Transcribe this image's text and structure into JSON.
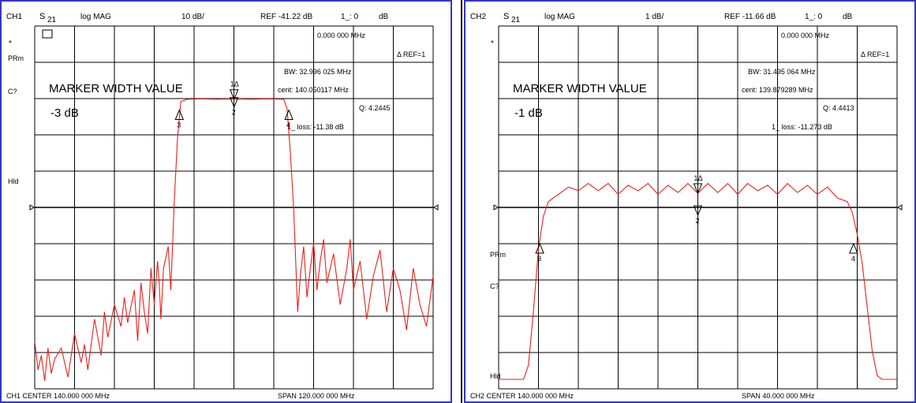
{
  "colors": {
    "trace": "#e8201c",
    "frame": "#3434c8",
    "grid": "#000000",
    "text": "#000000"
  },
  "channels": [
    {
      "header": {
        "channel": "CH1",
        "param": "S",
        "param_sub": "21",
        "format": "log MAG",
        "scale": "10 dB/",
        "ref": "REF -41.22 dB",
        "marker_id": "1_: 0",
        "marker_unit": "dB"
      },
      "side_labels": [
        "*",
        "PRm",
        "C?",
        "Hld"
      ],
      "box_icon": "[ʰ͞ᴢ]",
      "marker_readout": {
        "freq": "0.000 000 MHz",
        "ref": "Δ REF=1",
        "bw": "BW:  32.996 025 MHz",
        "cent": "cent:  140.050117 MHz",
        "q": "Q: 4.2445",
        "loss": "1_ loss: -11.38  dB"
      },
      "overlay": {
        "title": "MARKER WIDTH VALUE",
        "value": "-3 dB"
      },
      "footer": {
        "center": "CH1 CENTER  140.000 000 MHz",
        "span": "SPAN  120.000 000 MHz"
      },
      "markers": [
        {
          "label": "1Δ",
          "x": 140.05,
          "y": -11.38
        },
        {
          "label": "2",
          "x": 140.05,
          "y": -11.38
        },
        {
          "label": "3",
          "x": 123.55,
          "y": -14.38
        },
        {
          "label": "4",
          "x": 156.55,
          "y": -14.38
        }
      ]
    },
    {
      "header": {
        "channel": "CH2",
        "param": "S",
        "param_sub": "21",
        "format": "log MAG",
        "scale": "1 dB/",
        "ref": "REF -11.66 dB",
        "marker_id": "1_: 0",
        "marker_unit": "dB"
      },
      "side_labels": [
        "*",
        "PRm",
        "C?",
        "Hld"
      ],
      "box_icon": "",
      "marker_readout": {
        "freq": "0.000 000 MHz",
        "ref": "Δ REF=1",
        "bw": "BW:  31.495 064 MHz",
        "cent": "cent:  139.879289 MHz",
        "q": "Q: 4.4413",
        "loss": "1_ loss: -11.273 dB"
      },
      "overlay": {
        "title": "MARKER WIDTH VALUE",
        "value": "-1 dB"
      },
      "footer": {
        "center": "CH2 CENTER  140.000 000 MHz",
        "span": "SPAN  40.000 000 MHz"
      },
      "markers": [
        {
          "label": "1Δ",
          "x": 140.0,
          "y": -11.27
        },
        {
          "label": "2",
          "x": 140.0,
          "y": -11.66
        },
        {
          "label": "3",
          "x": 124.13,
          "y": -12.66
        },
        {
          "label": "4",
          "x": 155.63,
          "y": -12.66
        }
      ]
    }
  ],
  "chart_data": [
    {
      "type": "line",
      "title": "",
      "xlabel": "",
      "ylabel": "",
      "xlim": [
        80,
        200
      ],
      "ylim": [
        -91.22,
        8.78
      ],
      "x_unit": "MHz",
      "y_unit": "dB",
      "ref_level": -41.22,
      "grid": true,
      "series": [
        {
          "x": [
            80,
            81,
            82,
            83,
            84,
            85,
            86,
            88,
            90,
            92,
            94,
            95,
            96,
            98,
            100,
            101,
            102,
            104,
            106,
            107,
            108,
            110,
            111,
            112,
            113,
            114,
            115,
            116,
            117,
            117.5,
            118,
            118.8,
            119.5,
            120.2,
            121,
            122,
            123,
            124,
            126,
            130,
            135,
            140,
            145,
            150,
            155,
            156,
            157,
            158,
            158.6,
            159.2,
            160,
            161,
            162,
            163,
            164,
            165,
            166,
            167,
            168,
            170,
            172,
            174,
            175,
            176,
            178,
            180,
            182,
            184,
            186,
            188,
            190,
            192,
            194,
            196,
            198,
            200
          ],
          "y": [
            -78,
            -86,
            -82,
            -89,
            -80,
            -87,
            -83,
            -80,
            -88,
            -76,
            -84,
            -79,
            -86,
            -72,
            -82,
            -70,
            -77,
            -68,
            -74,
            -66,
            -73,
            -64,
            -78,
            -62,
            -70,
            -76,
            -58,
            -68,
            -56,
            -62,
            -72,
            -58,
            -55,
            -52,
            -64,
            -40,
            -22,
            -12,
            -11.4,
            -11.3,
            -11.4,
            -11.3,
            -11.4,
            -11.3,
            -11.4,
            -14,
            -26,
            -42,
            -56,
            -70,
            -60,
            -52,
            -66,
            -58,
            -51,
            -64,
            -56,
            -50,
            -62,
            -54,
            -68,
            -58,
            -50,
            -64,
            -56,
            -72,
            -60,
            -53,
            -70,
            -58,
            -64,
            -75,
            -58,
            -68,
            -74,
            -60
          ]
        }
      ]
    },
    {
      "type": "line",
      "title": "",
      "xlabel": "",
      "ylabel": "",
      "xlim": [
        120,
        160
      ],
      "ylim": [
        -16.66,
        -6.66
      ],
      "x_unit": "MHz",
      "y_unit": "dB",
      "ref_level": -11.66,
      "grid": true,
      "series": [
        {
          "x": [
            120,
            120.5,
            121,
            121.5,
            122,
            122.5,
            123,
            123.5,
            124,
            124.5,
            125,
            126,
            127,
            128,
            129,
            130,
            131,
            132,
            133,
            134,
            135,
            136,
            137,
            138,
            139,
            140,
            141,
            142,
            143,
            144,
            145,
            146,
            147,
            148,
            149,
            150,
            151,
            152,
            153,
            154,
            155,
            155.5,
            156,
            156.5,
            157,
            157.5,
            158,
            158.5,
            159,
            159.5,
            160
          ],
          "y": [
            -16.4,
            -16.4,
            -16.4,
            -16.4,
            -16.4,
            -16.4,
            -16.0,
            -14.5,
            -12.8,
            -11.9,
            -11.5,
            -11.3,
            -11.1,
            -11.2,
            -11.0,
            -11.2,
            -11.0,
            -11.3,
            -11.05,
            -11.2,
            -11.0,
            -11.3,
            -11.05,
            -11.25,
            -11.0,
            -11.27,
            -11.0,
            -11.25,
            -11.0,
            -11.3,
            -11.0,
            -11.2,
            -11.05,
            -11.3,
            -11.0,
            -11.25,
            -11.05,
            -11.3,
            -11.1,
            -11.4,
            -11.5,
            -11.8,
            -12.4,
            -13.2,
            -14.4,
            -15.6,
            -16.3,
            -16.4,
            -16.4,
            -16.4,
            -16.4
          ]
        }
      ]
    }
  ]
}
